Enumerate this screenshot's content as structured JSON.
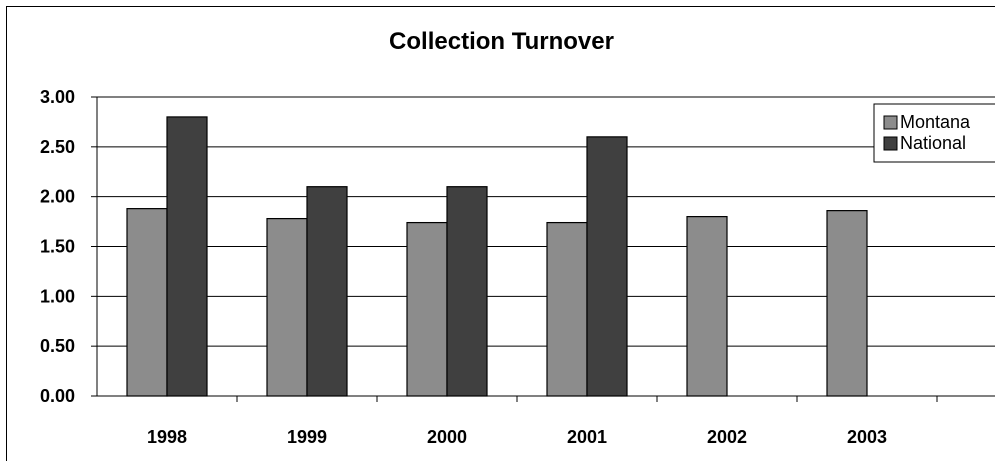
{
  "chart_data": {
    "type": "bar",
    "title": "Collection Turnover",
    "xlabel": "",
    "ylabel": "",
    "categories": [
      "1998",
      "1999",
      "2000",
      "2001",
      "2002",
      "2003"
    ],
    "series": [
      {
        "name": "Montana",
        "values": [
          1.88,
          1.78,
          1.74,
          1.74,
          1.8,
          1.86
        ],
        "color": "#8c8c8c"
      },
      {
        "name": "National",
        "values": [
          2.8,
          2.1,
          2.1,
          2.6,
          null,
          null
        ],
        "color": "#404040"
      }
    ],
    "ylim": [
      0,
      3
    ],
    "ytick_labels": [
      "0.00",
      "0.50",
      "1.00",
      "1.50",
      "2.00",
      "2.50",
      "3.00"
    ],
    "grid": true,
    "legend_position": "right"
  }
}
